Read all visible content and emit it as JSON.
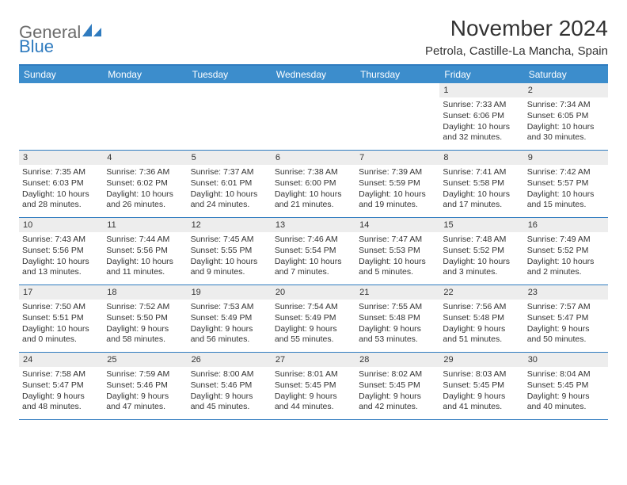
{
  "logo": {
    "general": "General",
    "blue": "Blue"
  },
  "title": "November 2024",
  "location": "Petrola, Castille-La Mancha, Spain",
  "colors": {
    "header_bg": "#3c8dcc",
    "header_text": "#ffffff",
    "border": "#2f7bbf",
    "daynum_bg": "#ededed",
    "body_text": "#333333",
    "logo_gray": "#6b6b6b",
    "logo_blue": "#2f7bbf",
    "background": "#ffffff"
  },
  "day_headers": [
    "Sunday",
    "Monday",
    "Tuesday",
    "Wednesday",
    "Thursday",
    "Friday",
    "Saturday"
  ],
  "weeks": [
    [
      {
        "n": "",
        "sr": "",
        "ss": "",
        "dl": ""
      },
      {
        "n": "",
        "sr": "",
        "ss": "",
        "dl": ""
      },
      {
        "n": "",
        "sr": "",
        "ss": "",
        "dl": ""
      },
      {
        "n": "",
        "sr": "",
        "ss": "",
        "dl": ""
      },
      {
        "n": "",
        "sr": "",
        "ss": "",
        "dl": ""
      },
      {
        "n": "1",
        "sr": "Sunrise: 7:33 AM",
        "ss": "Sunset: 6:06 PM",
        "dl": "Daylight: 10 hours and 32 minutes."
      },
      {
        "n": "2",
        "sr": "Sunrise: 7:34 AM",
        "ss": "Sunset: 6:05 PM",
        "dl": "Daylight: 10 hours and 30 minutes."
      }
    ],
    [
      {
        "n": "3",
        "sr": "Sunrise: 7:35 AM",
        "ss": "Sunset: 6:03 PM",
        "dl": "Daylight: 10 hours and 28 minutes."
      },
      {
        "n": "4",
        "sr": "Sunrise: 7:36 AM",
        "ss": "Sunset: 6:02 PM",
        "dl": "Daylight: 10 hours and 26 minutes."
      },
      {
        "n": "5",
        "sr": "Sunrise: 7:37 AM",
        "ss": "Sunset: 6:01 PM",
        "dl": "Daylight: 10 hours and 24 minutes."
      },
      {
        "n": "6",
        "sr": "Sunrise: 7:38 AM",
        "ss": "Sunset: 6:00 PM",
        "dl": "Daylight: 10 hours and 21 minutes."
      },
      {
        "n": "7",
        "sr": "Sunrise: 7:39 AM",
        "ss": "Sunset: 5:59 PM",
        "dl": "Daylight: 10 hours and 19 minutes."
      },
      {
        "n": "8",
        "sr": "Sunrise: 7:41 AM",
        "ss": "Sunset: 5:58 PM",
        "dl": "Daylight: 10 hours and 17 minutes."
      },
      {
        "n": "9",
        "sr": "Sunrise: 7:42 AM",
        "ss": "Sunset: 5:57 PM",
        "dl": "Daylight: 10 hours and 15 minutes."
      }
    ],
    [
      {
        "n": "10",
        "sr": "Sunrise: 7:43 AM",
        "ss": "Sunset: 5:56 PM",
        "dl": "Daylight: 10 hours and 13 minutes."
      },
      {
        "n": "11",
        "sr": "Sunrise: 7:44 AM",
        "ss": "Sunset: 5:56 PM",
        "dl": "Daylight: 10 hours and 11 minutes."
      },
      {
        "n": "12",
        "sr": "Sunrise: 7:45 AM",
        "ss": "Sunset: 5:55 PM",
        "dl": "Daylight: 10 hours and 9 minutes."
      },
      {
        "n": "13",
        "sr": "Sunrise: 7:46 AM",
        "ss": "Sunset: 5:54 PM",
        "dl": "Daylight: 10 hours and 7 minutes."
      },
      {
        "n": "14",
        "sr": "Sunrise: 7:47 AM",
        "ss": "Sunset: 5:53 PM",
        "dl": "Daylight: 10 hours and 5 minutes."
      },
      {
        "n": "15",
        "sr": "Sunrise: 7:48 AM",
        "ss": "Sunset: 5:52 PM",
        "dl": "Daylight: 10 hours and 3 minutes."
      },
      {
        "n": "16",
        "sr": "Sunrise: 7:49 AM",
        "ss": "Sunset: 5:52 PM",
        "dl": "Daylight: 10 hours and 2 minutes."
      }
    ],
    [
      {
        "n": "17",
        "sr": "Sunrise: 7:50 AM",
        "ss": "Sunset: 5:51 PM",
        "dl": "Daylight: 10 hours and 0 minutes."
      },
      {
        "n": "18",
        "sr": "Sunrise: 7:52 AM",
        "ss": "Sunset: 5:50 PM",
        "dl": "Daylight: 9 hours and 58 minutes."
      },
      {
        "n": "19",
        "sr": "Sunrise: 7:53 AM",
        "ss": "Sunset: 5:49 PM",
        "dl": "Daylight: 9 hours and 56 minutes."
      },
      {
        "n": "20",
        "sr": "Sunrise: 7:54 AM",
        "ss": "Sunset: 5:49 PM",
        "dl": "Daylight: 9 hours and 55 minutes."
      },
      {
        "n": "21",
        "sr": "Sunrise: 7:55 AM",
        "ss": "Sunset: 5:48 PM",
        "dl": "Daylight: 9 hours and 53 minutes."
      },
      {
        "n": "22",
        "sr": "Sunrise: 7:56 AM",
        "ss": "Sunset: 5:48 PM",
        "dl": "Daylight: 9 hours and 51 minutes."
      },
      {
        "n": "23",
        "sr": "Sunrise: 7:57 AM",
        "ss": "Sunset: 5:47 PM",
        "dl": "Daylight: 9 hours and 50 minutes."
      }
    ],
    [
      {
        "n": "24",
        "sr": "Sunrise: 7:58 AM",
        "ss": "Sunset: 5:47 PM",
        "dl": "Daylight: 9 hours and 48 minutes."
      },
      {
        "n": "25",
        "sr": "Sunrise: 7:59 AM",
        "ss": "Sunset: 5:46 PM",
        "dl": "Daylight: 9 hours and 47 minutes."
      },
      {
        "n": "26",
        "sr": "Sunrise: 8:00 AM",
        "ss": "Sunset: 5:46 PM",
        "dl": "Daylight: 9 hours and 45 minutes."
      },
      {
        "n": "27",
        "sr": "Sunrise: 8:01 AM",
        "ss": "Sunset: 5:45 PM",
        "dl": "Daylight: 9 hours and 44 minutes."
      },
      {
        "n": "28",
        "sr": "Sunrise: 8:02 AM",
        "ss": "Sunset: 5:45 PM",
        "dl": "Daylight: 9 hours and 42 minutes."
      },
      {
        "n": "29",
        "sr": "Sunrise: 8:03 AM",
        "ss": "Sunset: 5:45 PM",
        "dl": "Daylight: 9 hours and 41 minutes."
      },
      {
        "n": "30",
        "sr": "Sunrise: 8:04 AM",
        "ss": "Sunset: 5:45 PM",
        "dl": "Daylight: 9 hours and 40 minutes."
      }
    ]
  ]
}
